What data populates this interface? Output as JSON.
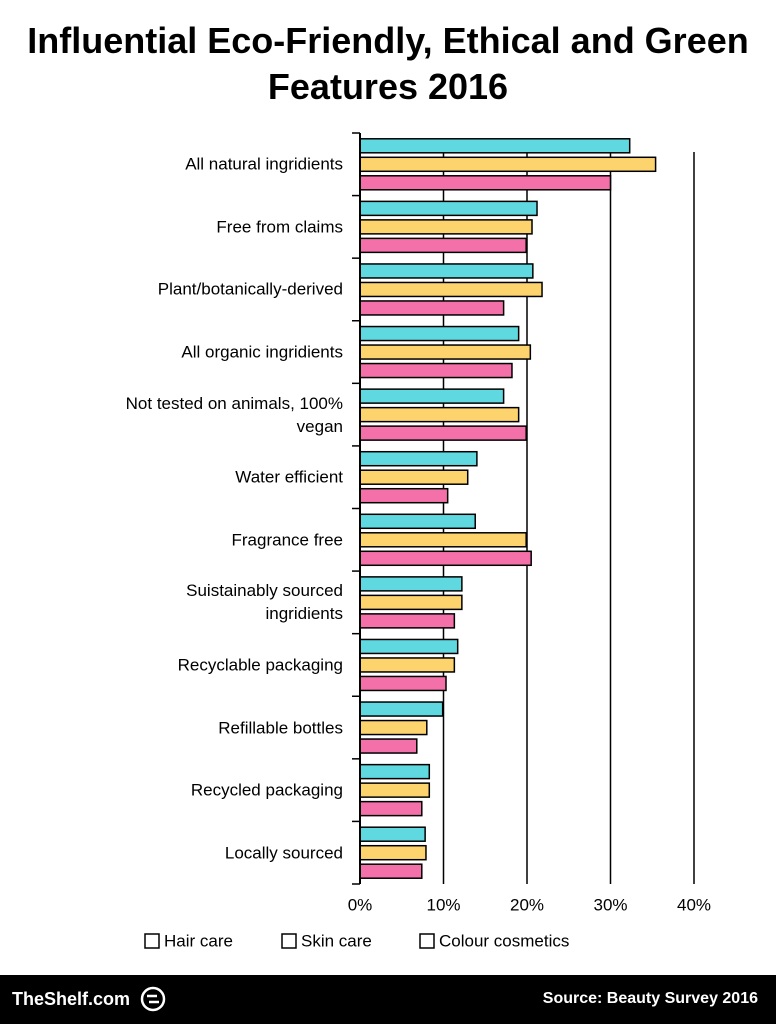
{
  "chart_data": {
    "type": "hbar",
    "title": "Influential Eco-Friendly, Ethical and Green Features 2016",
    "categories": [
      "All natural ingridients",
      "Free from claims",
      "Plant/botanically-derived",
      "All organic ingridients",
      "Not tested on animals, 100% vegan",
      "Water efficient",
      "Fragrance free",
      "Suistainably sourced ingridients",
      "Recyclable packaging",
      "Refillable bottles",
      "Recycled packaging",
      "Locally sourced"
    ],
    "series": [
      {
        "name": "Hair care",
        "color": "#5fd8df",
        "values": [
          32.3,
          21.2,
          20.7,
          19.0,
          17.2,
          14.0,
          13.8,
          12.2,
          11.7,
          9.9,
          8.3,
          7.8
        ]
      },
      {
        "name": "Skin care",
        "color": "#fdd36e",
        "values": [
          35.4,
          20.6,
          21.8,
          20.4,
          19.0,
          12.9,
          19.9,
          12.2,
          11.3,
          8.0,
          8.3,
          7.9
        ]
      },
      {
        "name": "Colour cosmetics",
        "color": "#f470a8",
        "values": [
          30.0,
          19.9,
          17.2,
          18.2,
          19.9,
          10.5,
          20.5,
          11.3,
          10.3,
          6.8,
          7.4,
          7.4
        ]
      }
    ],
    "xlim": [
      0,
      40
    ],
    "xticks": [
      {
        "value": 0,
        "label": "0%"
      },
      {
        "value": 10,
        "label": "10%"
      },
      {
        "value": 20,
        "label": "20%"
      },
      {
        "value": 30,
        "label": "30%"
      },
      {
        "value": 40,
        "label": "40%"
      }
    ],
    "grid": true,
    "legend": "bottom"
  },
  "footer": {
    "brand": "TheShelf.com",
    "source": "Source: Beauty Survey 2016"
  }
}
